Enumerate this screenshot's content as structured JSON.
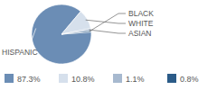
{
  "chart_data": {
    "type": "pie",
    "categories": [
      "HISPANIC",
      "WHITE",
      "ASIAN",
      "BLACK"
    ],
    "values": [
      87.3,
      10.8,
      1.1,
      0.8
    ],
    "value_labels": [
      "87.3%",
      "10.8%",
      "1.1%",
      "0.8%"
    ],
    "colors": [
      "#6b8db5",
      "#d6e0ec",
      "#a7b9cf",
      "#2b5b88"
    ]
  }
}
